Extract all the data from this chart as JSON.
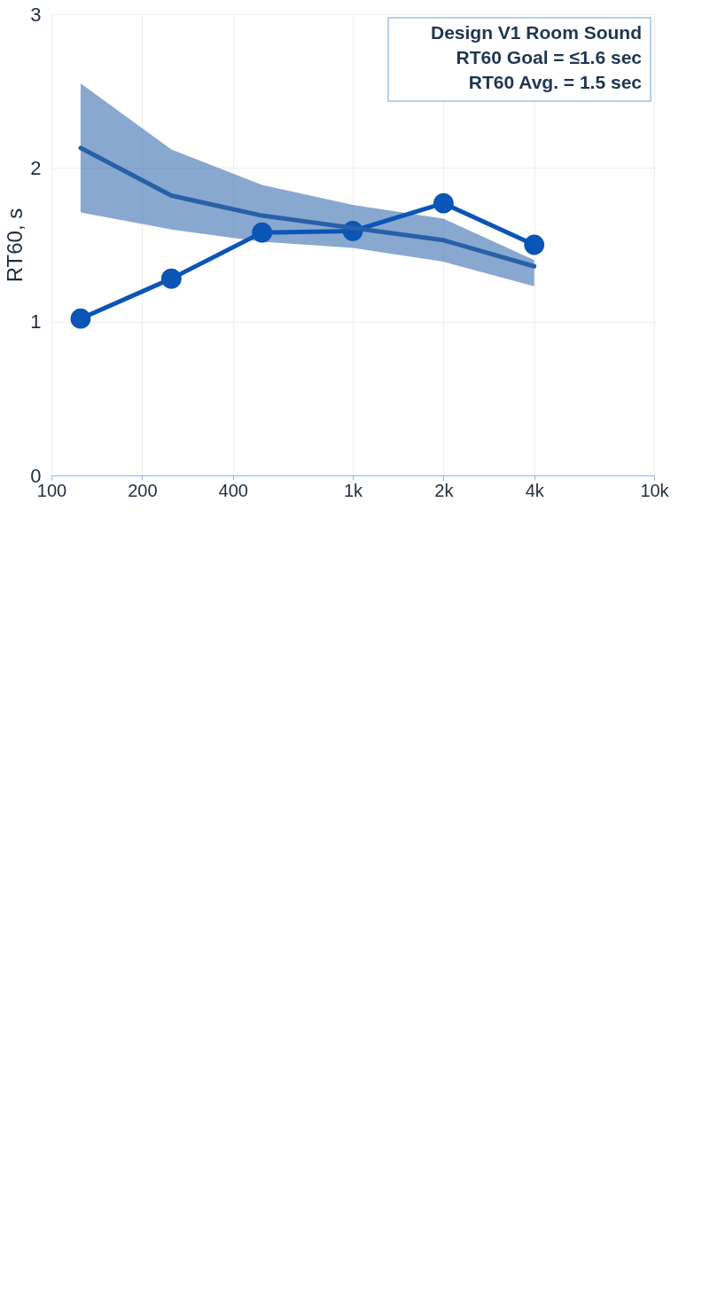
{
  "chart_data": {
    "type": "line",
    "ylabel": "RT60, s",
    "annotations": [
      "Design V1 Room Sound",
      "RT60 Goal = ≤1.6 sec",
      "RT60 Avg. = 1.5 sec"
    ],
    "series": [
      {
        "color": "#0a55b5",
        "marker": "circle",
        "x": [
          125,
          250,
          500,
          1000,
          2000,
          4000
        ],
        "values": [
          1.02,
          1.28,
          1.58,
          1.59,
          1.77,
          1.5
        ]
      },
      {
        "color": "#2860a8",
        "marker": "none",
        "x": [
          125,
          250,
          500,
          1000,
          2000,
          4000
        ],
        "values": [
          2.13,
          1.82,
          1.69,
          1.61,
          1.53,
          1.36
        ],
        "lower": [
          1.71,
          1.6,
          1.52,
          1.48,
          1.39,
          1.23
        ],
        "upper": [
          2.55,
          2.12,
          1.89,
          1.76,
          1.67,
          1.4
        ]
      }
    ],
    "log": "x",
    "xlim": [
      100,
      10000
    ],
    "xticks": [
      100,
      200,
      400,
      {
        "value": 1000,
        "label": "1k"
      },
      {
        "value": 2000,
        "label": "2k"
      },
      {
        "value": 4000,
        "label": "4k"
      },
      {
        "value": 10000,
        "label": "10k"
      }
    ],
    "ylim": [
      0,
      3
    ],
    "yticks": [
      0,
      1,
      2,
      3
    ],
    "grid": true,
    "line_style": "solid"
  }
}
